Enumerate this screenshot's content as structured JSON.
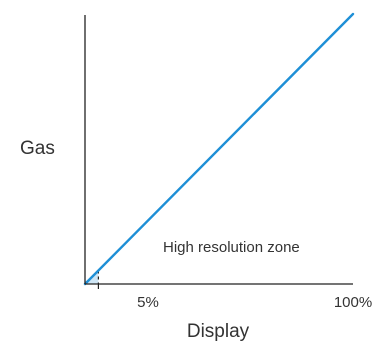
{
  "chart_data": {
    "type": "line",
    "xlabel": "Display",
    "ylabel": "Gas",
    "xlim": [
      0,
      100
    ],
    "ylim": [
      0,
      100
    ],
    "x_ticks": [
      {
        "value": 5,
        "label": "5%"
      },
      {
        "value": 100,
        "label": "100%"
      }
    ],
    "series": [
      {
        "x": [
          0,
          100
        ],
        "y": [
          0,
          100
        ],
        "color": "#1e8fd6"
      }
    ],
    "shaded_region": {
      "x_from": 0,
      "x_to": 5,
      "color": "#cfe6f5"
    },
    "marker_line": {
      "x": 5,
      "style": "dashed"
    },
    "annotations": [
      {
        "text": "High resolution zone"
      }
    ],
    "grid": false,
    "legend": "none"
  },
  "colors": {
    "line": "#1e8fd6",
    "fill": "#cfe6f5",
    "axis": "#222222",
    "text": "#333333"
  }
}
